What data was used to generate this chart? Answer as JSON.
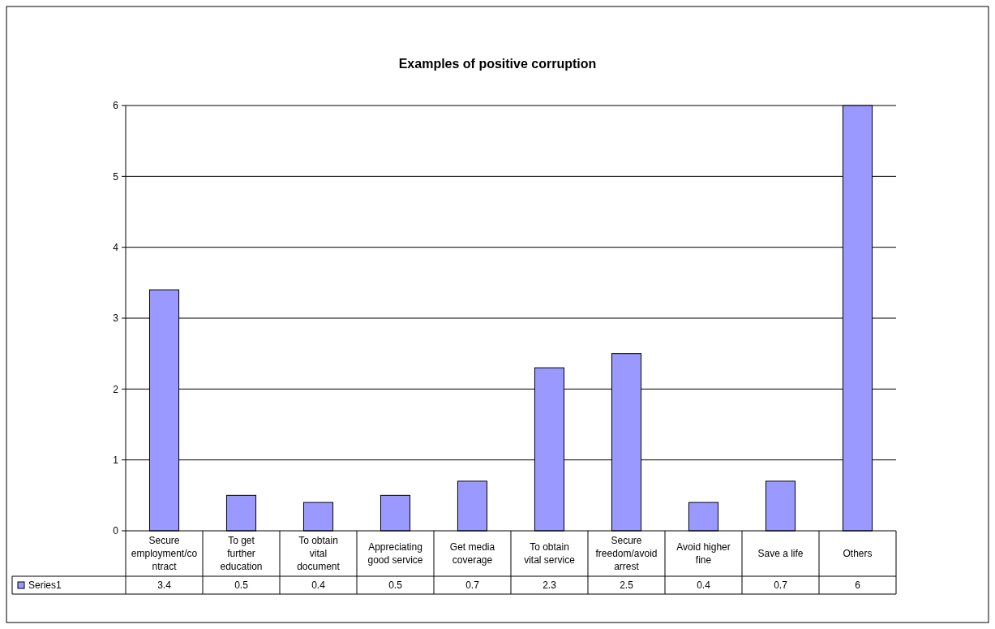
{
  "chart_data": {
    "type": "bar",
    "title": "Examples of positive corruption",
    "categories": [
      "Secure employment/contract",
      "To get further education",
      "To obtain vital document",
      "Appreciating good service",
      "Get media coverage",
      "To obtain vital service",
      "Secure freedom/avoid arrest",
      "Avoid higher fine",
      "Save a life",
      "Others"
    ],
    "series": [
      {
        "name": "Series1",
        "color": "#9999ff",
        "values": [
          3.4,
          0.5,
          0.4,
          0.5,
          0.7,
          2.3,
          2.5,
          0.4,
          0.7,
          6
        ]
      }
    ],
    "ylim": [
      0,
      6
    ],
    "yticks": [
      0,
      1,
      2,
      3,
      4,
      5,
      6
    ],
    "grid": "y",
    "data_labels": true,
    "legend": "bottom"
  }
}
